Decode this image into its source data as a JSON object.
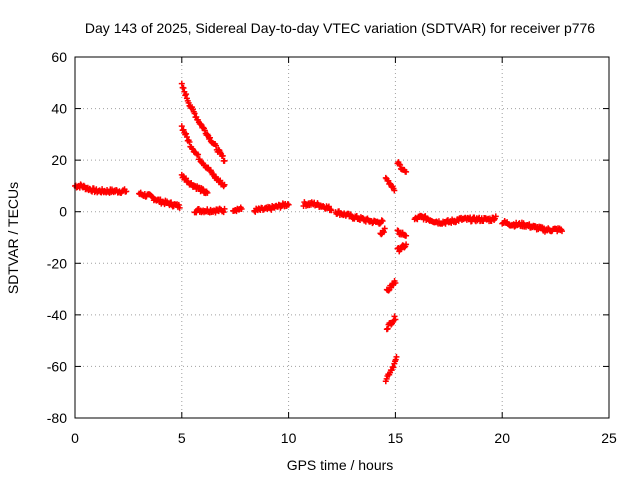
{
  "chart_data": {
    "type": "scatter",
    "title": "Day 143 of 2025, Sidereal Day-to-day VTEC variation (SDTVAR) for receiver p776",
    "xlabel": "GPS time / hours",
    "ylabel": "SDTVAR / TECUs",
    "xlim": [
      0,
      25
    ],
    "ylim": [
      -80,
      60
    ],
    "xticks": [
      0,
      5,
      10,
      15,
      20,
      25
    ],
    "yticks": [
      -80,
      -60,
      -40,
      -20,
      0,
      20,
      40,
      60
    ],
    "xtick_labels": [
      "0",
      "5",
      "10",
      "15",
      "20",
      "25"
    ],
    "ytick_labels": [
      "-80",
      "-60",
      "-40",
      "-20",
      "0",
      "20",
      "40",
      "60"
    ],
    "grid": true,
    "marker": "+",
    "marker_color": "#ff0000",
    "series": [
      {
        "name": "main-trace",
        "segments": [
          [
            [
              0.0,
              10
            ],
            [
              0.3,
              10
            ],
            [
              0.6,
              9
            ],
            [
              1.0,
              8
            ],
            [
              1.5,
              8
            ],
            [
              2.0,
              8
            ],
            [
              2.4,
              8
            ]
          ],
          [
            [
              3.0,
              7
            ],
            [
              3.5,
              6
            ],
            [
              4.0,
              4
            ],
            [
              4.5,
              3
            ],
            [
              4.9,
              2
            ]
          ],
          [
            [
              5.6,
              0.5
            ],
            [
              6.0,
              0.5
            ],
            [
              6.5,
              0.5
            ],
            [
              7.0,
              0.5
            ]
          ],
          [
            [
              7.4,
              1
            ],
            [
              7.8,
              1
            ]
          ],
          [
            [
              8.4,
              0.5
            ],
            [
              9.0,
              1
            ],
            [
              9.5,
              2
            ],
            [
              10.0,
              3
            ]
          ],
          [
            [
              10.7,
              3
            ],
            [
              11.2,
              3
            ],
            [
              11.7,
              2
            ],
            [
              12.0,
              1
            ]
          ],
          [
            [
              12.2,
              0
            ],
            [
              12.6,
              -1
            ],
            [
              13.0,
              -2
            ],
            [
              13.5,
              -3
            ],
            [
              14.0,
              -4
            ],
            [
              14.4,
              -4
            ]
          ]
        ]
      },
      {
        "name": "arc-1",
        "points": [
          [
            5.0,
            49
          ],
          [
            5.4,
            41
          ],
          [
            5.8,
            35
          ],
          [
            6.2,
            30
          ],
          [
            6.6,
            25
          ],
          [
            7.0,
            20
          ]
        ]
      },
      {
        "name": "arc-2",
        "points": [
          [
            5.0,
            33
          ],
          [
            5.4,
            26
          ],
          [
            5.8,
            21
          ],
          [
            6.2,
            17
          ],
          [
            6.6,
            13
          ],
          [
            7.0,
            10
          ]
        ]
      },
      {
        "name": "arc-3",
        "points": [
          [
            5.0,
            14
          ],
          [
            5.4,
            11
          ],
          [
            5.8,
            9
          ],
          [
            6.2,
            7
          ]
        ]
      },
      {
        "name": "near-15h",
        "segments": [
          [
            [
              14.3,
              -9
            ],
            [
              14.5,
              -7
            ]
          ],
          [
            [
              14.55,
              13
            ],
            [
              14.75,
              11
            ],
            [
              14.95,
              9
            ]
          ],
          [
            [
              14.6,
              -31
            ],
            [
              14.8,
              -29
            ],
            [
              15.0,
              -27
            ]
          ],
          [
            [
              14.6,
              -45
            ],
            [
              14.8,
              -43
            ],
            [
              15.0,
              -41
            ]
          ],
          [
            [
              14.55,
              -65
            ],
            [
              14.75,
              -62
            ],
            [
              14.95,
              -59
            ],
            [
              15.05,
              -57
            ]
          ],
          [
            [
              15.1,
              19
            ],
            [
              15.3,
              17
            ],
            [
              15.5,
              15
            ]
          ],
          [
            [
              15.1,
              -8
            ],
            [
              15.5,
              -9
            ]
          ],
          [
            [
              15.1,
              -15
            ],
            [
              15.5,
              -13
            ]
          ]
        ]
      },
      {
        "name": "late-trace",
        "segments": [
          [
            [
              15.9,
              -3
            ],
            [
              16.2,
              -2
            ],
            [
              16.6,
              -3
            ],
            [
              17.0,
              -4
            ],
            [
              17.5,
              -4
            ],
            [
              18.0,
              -3
            ],
            [
              18.5,
              -3
            ],
            [
              19.0,
              -3
            ],
            [
              19.5,
              -3
            ],
            [
              19.7,
              -2
            ]
          ],
          [
            [
              20.0,
              -4
            ],
            [
              20.5,
              -5
            ],
            [
              21.0,
              -5
            ],
            [
              21.5,
              -6
            ],
            [
              22.0,
              -7
            ],
            [
              22.5,
              -7
            ],
            [
              22.8,
              -7
            ]
          ]
        ]
      }
    ]
  }
}
